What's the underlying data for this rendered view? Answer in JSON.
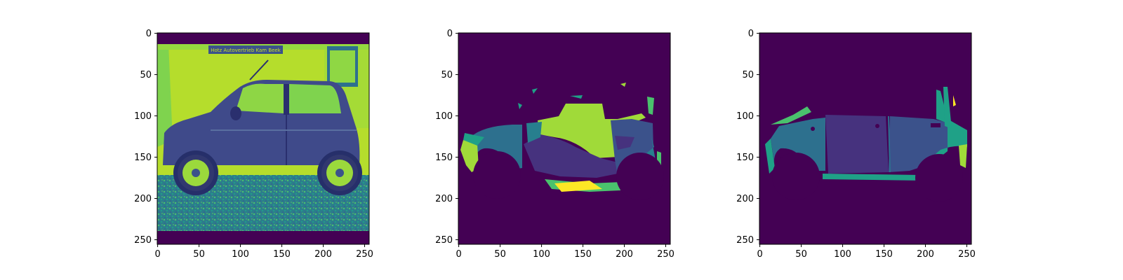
{
  "colors": {
    "background": "#ffffff",
    "viridis_0": "#440154",
    "viridis_1": "#46327e",
    "viridis_2": "#365c8d",
    "viridis_3": "#277f8e",
    "viridis_4": "#1fa187",
    "viridis_5": "#4ac16d",
    "viridis_6": "#a0da39",
    "viridis_7": "#fde725"
  },
  "panels": [
    {
      "content": "photo-car-side-view",
      "x_ticks": [
        "0",
        "50",
        "100",
        "150",
        "200",
        "250"
      ],
      "y_ticks": [
        "0",
        "50",
        "100",
        "150",
        "200",
        "250"
      ],
      "sign_text": "Hotz Autovertrieb  Kam Beek"
    },
    {
      "content": "segmentation-mask-a",
      "x_ticks": [
        "0",
        "50",
        "100",
        "150",
        "200",
        "250"
      ],
      "y_ticks": [
        "0",
        "50",
        "100",
        "150",
        "200",
        "250"
      ]
    },
    {
      "content": "segmentation-mask-b",
      "x_ticks": [
        "0",
        "50",
        "100",
        "150",
        "200",
        "250"
      ],
      "y_ticks": [
        "0",
        "50",
        "100",
        "150",
        "200",
        "250"
      ]
    }
  ]
}
